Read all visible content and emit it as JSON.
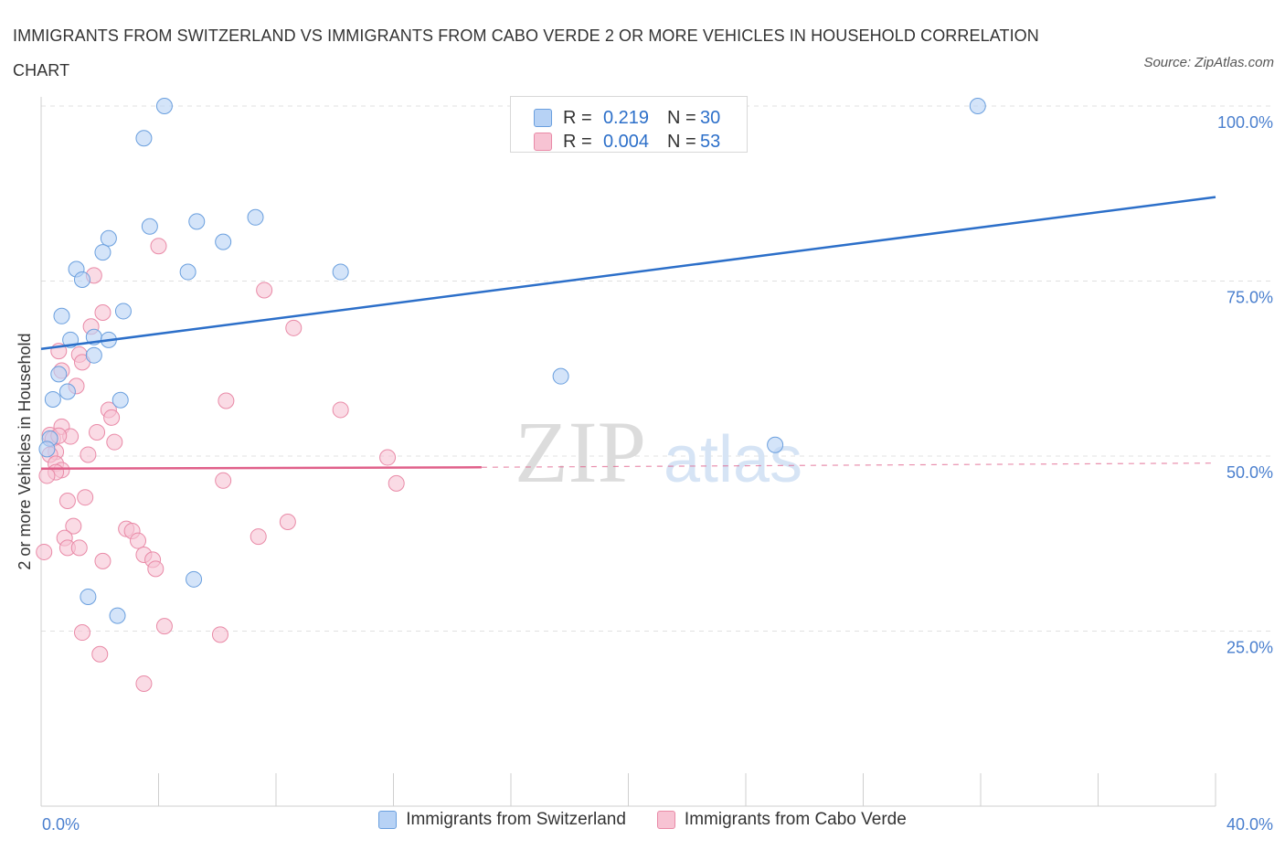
{
  "title": "IMMIGRANTS FROM SWITZERLAND VS IMMIGRANTS FROM CABO VERDE 2 OR MORE VEHICLES IN HOUSEHOLD CORRELATION CHART",
  "source": "Source: ZipAtlas.com",
  "watermark": {
    "zip": "ZIP",
    "atlas": "atlas"
  },
  "colors": {
    "blue_fill": "#b7d2f5",
    "blue_stroke": "#6a9fde",
    "blue_line": "#2c6fc9",
    "pink_fill": "#f7c3d3",
    "pink_stroke": "#e98aa7",
    "pink_line": "#e0608a",
    "axis_text": "#4a7fce",
    "grid": "#e0e0e0"
  },
  "stats": {
    "rows": [
      {
        "r_label": "R =",
        "r_value": "0.219",
        "n_label": "N =",
        "n_value": "30",
        "color": "#b7d2f5"
      },
      {
        "r_label": "R =",
        "r_value": "0.004",
        "n_label": "N =",
        "n_value": "53",
        "color": "#f7c3d3"
      }
    ]
  },
  "legend": {
    "items": [
      {
        "label": "Immigrants from Switzerland",
        "color": "#b7d2f5",
        "border": "#6a9fde"
      },
      {
        "label": "Immigrants from Cabo Verde",
        "color": "#f7c3d3",
        "border": "#e98aa7"
      }
    ]
  },
  "chart_data": {
    "type": "scatter",
    "title": "IMMIGRANTS FROM SWITZERLAND VS IMMIGRANTS FROM CABO VERDE 2 OR MORE VEHICLES IN HOUSEHOLD CORRELATION CHART",
    "xlabel": "",
    "ylabel": "2 or more Vehicles in Household",
    "xlim": [
      0,
      40
    ],
    "ylim": [
      0,
      100
    ],
    "x_tick_labels": [
      "0.0%",
      "40.0%"
    ],
    "y_ticks": [
      25,
      50,
      75,
      100
    ],
    "y_tick_labels": [
      "25.0%",
      "50.0%",
      "75.0%",
      "100.0%"
    ],
    "grid": true,
    "legend_position": "bottom",
    "series": [
      {
        "name": "Immigrants from Switzerland",
        "points": [
          [
            4.2,
            100
          ],
          [
            31.9,
            100
          ],
          [
            3.5,
            95.4
          ],
          [
            3.7,
            82.8
          ],
          [
            5.3,
            83.5
          ],
          [
            7.3,
            84.1
          ],
          [
            2.3,
            81.1
          ],
          [
            6.2,
            80.6
          ],
          [
            2.1,
            79.1
          ],
          [
            1.2,
            76.7
          ],
          [
            1.4,
            75.2
          ],
          [
            5.0,
            76.3
          ],
          [
            10.2,
            76.3
          ],
          [
            2.8,
            70.7
          ],
          [
            0.7,
            70.0
          ],
          [
            1.0,
            66.6
          ],
          [
            1.8,
            67.0
          ],
          [
            2.3,
            66.6
          ],
          [
            1.8,
            64.4
          ],
          [
            0.6,
            61.7
          ],
          [
            17.7,
            61.4
          ],
          [
            0.4,
            58.1
          ],
          [
            0.9,
            59.2
          ],
          [
            2.7,
            58.0
          ],
          [
            0.3,
            52.5
          ],
          [
            25.0,
            51.6
          ],
          [
            0.2,
            51.0
          ],
          [
            5.2,
            32.4
          ],
          [
            1.6,
            29.9
          ],
          [
            2.6,
            27.2
          ]
        ],
        "trend": {
          "x": [
            0,
            40
          ],
          "y": [
            65.3,
            87.0
          ]
        }
      },
      {
        "name": "Immigrants from Cabo Verde",
        "points": [
          [
            4.0,
            80.0
          ],
          [
            1.8,
            75.8
          ],
          [
            7.6,
            73.7
          ],
          [
            2.1,
            70.5
          ],
          [
            8.6,
            68.3
          ],
          [
            1.7,
            68.5
          ],
          [
            0.6,
            65.0
          ],
          [
            1.3,
            64.5
          ],
          [
            1.4,
            63.4
          ],
          [
            0.7,
            62.2
          ],
          [
            1.2,
            60.0
          ],
          [
            6.3,
            57.9
          ],
          [
            10.2,
            56.6
          ],
          [
            2.3,
            56.6
          ],
          [
            2.4,
            55.5
          ],
          [
            0.7,
            54.2
          ],
          [
            1.9,
            53.4
          ],
          [
            1.0,
            52.8
          ],
          [
            0.3,
            53.0
          ],
          [
            2.5,
            52.0
          ],
          [
            0.4,
            52.5
          ],
          [
            0.5,
            50.6
          ],
          [
            0.3,
            50.2
          ],
          [
            1.6,
            50.2
          ],
          [
            11.8,
            49.8
          ],
          [
            0.5,
            48.9
          ],
          [
            0.7,
            48.0
          ],
          [
            0.5,
            47.7
          ],
          [
            0.2,
            47.2
          ],
          [
            6.2,
            46.5
          ],
          [
            12.1,
            46.1
          ],
          [
            1.5,
            44.1
          ],
          [
            0.9,
            43.6
          ],
          [
            8.4,
            40.6
          ],
          [
            1.1,
            40.0
          ],
          [
            2.9,
            39.6
          ],
          [
            3.1,
            39.3
          ],
          [
            0.8,
            38.3
          ],
          [
            7.4,
            38.5
          ],
          [
            3.3,
            37.9
          ],
          [
            0.9,
            36.9
          ],
          [
            1.3,
            36.9
          ],
          [
            0.1,
            36.3
          ],
          [
            3.5,
            35.9
          ],
          [
            3.8,
            35.2
          ],
          [
            2.1,
            35.0
          ],
          [
            3.9,
            33.9
          ],
          [
            4.2,
            25.7
          ],
          [
            1.4,
            24.8
          ],
          [
            6.1,
            24.5
          ],
          [
            2.0,
            21.7
          ],
          [
            3.5,
            17.5
          ],
          [
            0.6,
            52.9
          ]
        ],
        "trend": {
          "x": [
            0,
            15
          ],
          "y": [
            48.2,
            48.4
          ]
        },
        "trend_dashed": {
          "x": [
            15,
            40
          ],
          "y": [
            48.4,
            49.0
          ]
        }
      }
    ]
  }
}
